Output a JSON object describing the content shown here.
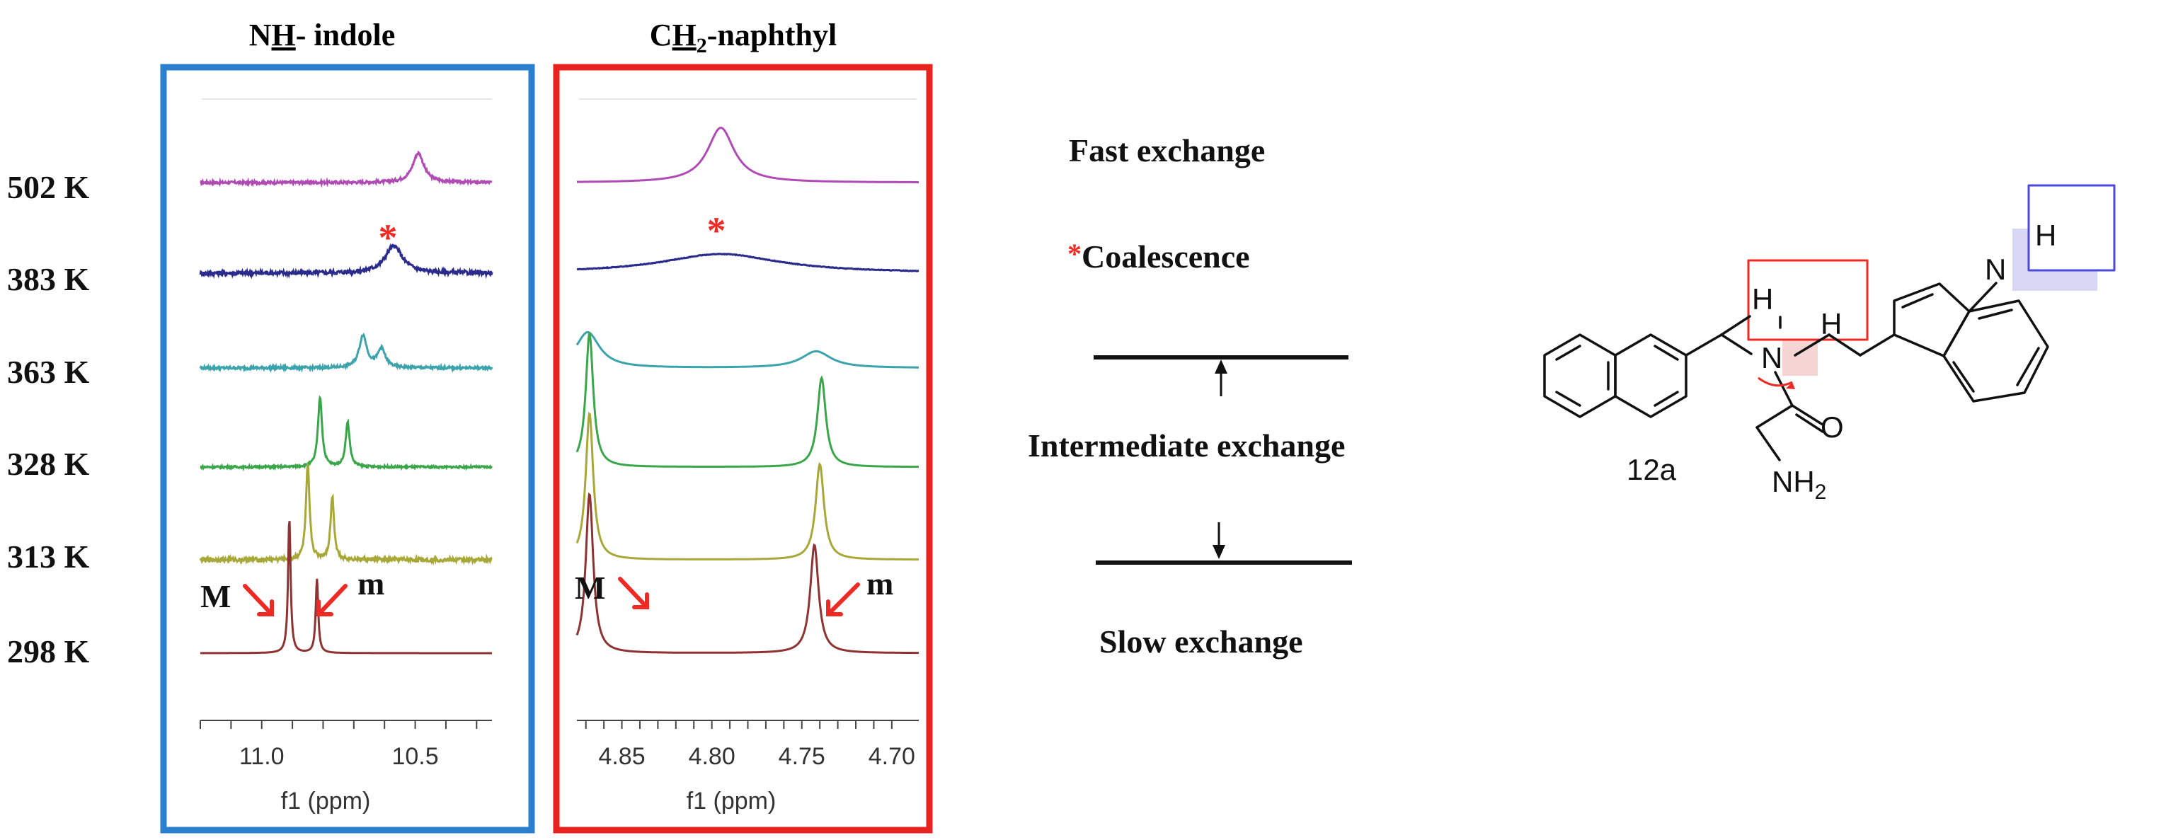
{
  "colors": {
    "nh_frame": "#2a7fce",
    "ch2_frame": "#e8231f",
    "accent_red": "#ee2a24",
    "highlight_blue": "#4d49d8"
  },
  "panels": {
    "nh": {
      "title_prefix": "N",
      "title_underlined": "H",
      "title_suffix": "- indole",
      "xlabel": "f1 (ppm)",
      "ticks": [
        "11.0",
        "10.5"
      ],
      "tick_values": [
        11.0,
        10.5
      ],
      "minor_ticks": [
        11.2,
        11.1,
        11.0,
        10.9,
        10.8,
        10.7,
        10.6,
        10.5,
        10.4,
        10.3
      ],
      "x_range": [
        11.2,
        10.25
      ],
      "label_major": "M",
      "label_minor": "m"
    },
    "ch2": {
      "title_prefix": "C",
      "title_underlined": "H",
      "title_subscript": "2",
      "title_suffix": "-naphthyl",
      "xlabel": "f1 (ppm)",
      "ticks": [
        "4.85",
        "4.80",
        "4.75",
        "4.70"
      ],
      "tick_values": [
        4.85,
        4.8,
        4.75,
        4.7
      ],
      "minor_ticks": [
        4.87,
        4.86,
        4.85,
        4.84,
        4.83,
        4.82,
        4.81,
        4.8,
        4.79,
        4.78,
        4.77,
        4.76,
        4.75,
        4.74,
        4.73,
        4.72,
        4.71,
        4.7
      ],
      "x_range": [
        4.875,
        4.685
      ],
      "label_major": "M",
      "label_minor": "m"
    }
  },
  "temperatures": [
    {
      "label": "502 K",
      "color": "#b04bb6"
    },
    {
      "label": "383 K",
      "color": "#2a2b8c"
    },
    {
      "label": "363 K",
      "color": "#3aa3ab"
    },
    {
      "label": "328 K",
      "color": "#3aa64a"
    },
    {
      "label": "313 K",
      "color": "#a8a838"
    },
    {
      "label": "298 K",
      "color": "#8e3232"
    }
  ],
  "chart_data": [
    {
      "type": "line",
      "title": "NH- indole",
      "xlabel": "f1 (ppm)",
      "xlim": [
        11.2,
        10.25
      ],
      "series": [
        {
          "name": "502 K",
          "peaks": [
            {
              "ppm": 10.49,
              "height": 0.22,
              "width": 0.022
            }
          ],
          "noise": 0.02
        },
        {
          "name": "383 K",
          "peaks": [
            {
              "ppm": 10.57,
              "height": 0.2,
              "width": 0.035
            }
          ],
          "noise": 0.03
        },
        {
          "name": "363 K",
          "peaks": [
            {
              "ppm": 10.67,
              "height": 0.24,
              "width": 0.015
            },
            {
              "ppm": 10.61,
              "height": 0.14,
              "width": 0.015
            }
          ],
          "noise": 0.02
        },
        {
          "name": "328 K",
          "peaks": [
            {
              "ppm": 10.81,
              "height": 0.52,
              "width": 0.008
            },
            {
              "ppm": 10.72,
              "height": 0.33,
              "width": 0.008
            }
          ],
          "noise": 0.015
        },
        {
          "name": "313 K",
          "peaks": [
            {
              "ppm": 10.85,
              "height": 0.7,
              "width": 0.007
            },
            {
              "ppm": 10.77,
              "height": 0.47,
              "width": 0.007
            }
          ],
          "noise": 0.03
        },
        {
          "name": "298 K",
          "peaks": [
            {
              "ppm": 10.91,
              "height": 1.0,
              "width": 0.005
            },
            {
              "ppm": 10.82,
              "height": 0.55,
              "width": 0.005
            }
          ],
          "noise": 0.0
        }
      ]
    },
    {
      "type": "line",
      "title": "CH2-naphthyl",
      "xlabel": "f1 (ppm)",
      "xlim": [
        4.875,
        4.685
      ],
      "series": [
        {
          "name": "502 K",
          "peaks": [
            {
              "ppm": 4.795,
              "height": 0.43,
              "width": 0.009
            }
          ],
          "noise": 0.0
        },
        {
          "name": "383 K",
          "peaks": [
            {
              "ppm": 4.795,
              "height": 0.15,
              "width": 0.04
            }
          ],
          "noise": 0.005
        },
        {
          "name": "363 K",
          "peaks": [
            {
              "ppm": 4.869,
              "height": 0.28,
              "width": 0.008
            },
            {
              "ppm": 4.742,
              "height": 0.13,
              "width": 0.01
            }
          ],
          "noise": 0.0
        },
        {
          "name": "328 K",
          "peaks": [
            {
              "ppm": 4.868,
              "height": 1.05,
              "width": 0.0025
            },
            {
              "ppm": 4.739,
              "height": 0.7,
              "width": 0.0028
            }
          ],
          "noise": 0.0
        },
        {
          "name": "313 K",
          "peaks": [
            {
              "ppm": 4.868,
              "height": 1.15,
              "width": 0.0025
            },
            {
              "ppm": 4.74,
              "height": 0.75,
              "width": 0.0028
            }
          ],
          "noise": 0.0
        },
        {
          "name": "298 K",
          "peaks": [
            {
              "ppm": 4.868,
              "height": 1.25,
              "width": 0.0025
            },
            {
              "ppm": 4.743,
              "height": 0.85,
              "width": 0.0028
            }
          ],
          "noise": 0.0
        }
      ]
    }
  ],
  "exchange": {
    "fast": "Fast exchange",
    "coalescence_star": "*",
    "coalescence": "Coalescence",
    "intermediate": "Intermediate exchange",
    "slow": "Slow exchange"
  },
  "molecule": {
    "compound_label": "12a",
    "atom_h": "H",
    "atom_n": "N",
    "atom_o": "O",
    "nh2_prefix": "NH",
    "nh2_subscript": "2"
  }
}
